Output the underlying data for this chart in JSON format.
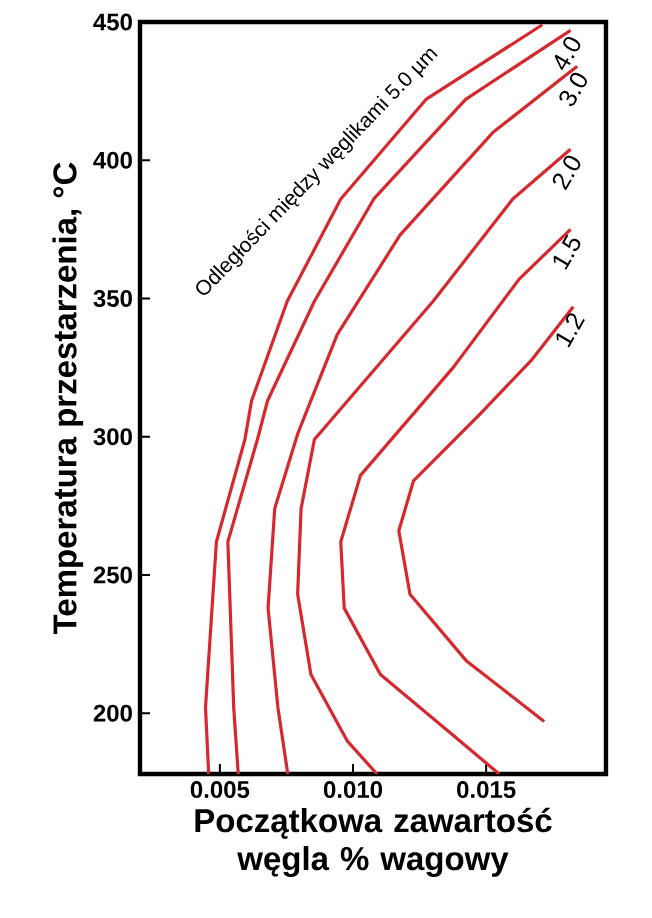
{
  "chart_data": {
    "type": "line",
    "xlabel": "Początkowa zawartość węgla % wagowy",
    "ylabel": "Temperatura przestarzenia, °C",
    "xlim": [
      0.002,
      0.0195
    ],
    "ylim": [
      178,
      450
    ],
    "xticks": [
      {
        "value": 0.005,
        "label": "0.005"
      },
      {
        "value": 0.01,
        "label": "0.010"
      },
      {
        "value": 0.015,
        "label": "0.015"
      }
    ],
    "yticks": [
      200,
      250,
      300,
      350,
      400,
      450
    ],
    "grid": false,
    "legend": false,
    "marker": "none",
    "line_style": "solid",
    "annotations": [
      "Odległości między węglikami 5.0 µm"
    ],
    "series": [
      {
        "color": "#d42a2e",
        "x": [
          0.00458,
          0.00446,
          0.00487,
          0.00594,
          0.00619,
          0.00753,
          0.00954,
          0.01274,
          0.01711
        ],
        "values": [
          178,
          202,
          262,
          299,
          313,
          349,
          386,
          422,
          449
        ]
      },
      {
        "name": "4.0",
        "color": "#d42a2e",
        "x": [
          0.00569,
          0.00552,
          0.0053,
          0.00641,
          0.00679,
          0.00855,
          0.01078,
          0.01423,
          0.01817
        ],
        "values": [
          178,
          202,
          262,
          299,
          313,
          349,
          386,
          422,
          447
        ]
      },
      {
        "name": "3.0",
        "color": "#d42a2e",
        "x": [
          0.00755,
          0.00718,
          0.00681,
          0.00706,
          0.00792,
          0.00941,
          0.01177,
          0.01525,
          0.01842
        ],
        "values": [
          178,
          202,
          238,
          274,
          301,
          337,
          373,
          410,
          434
        ]
      },
      {
        "name": "2.0",
        "color": "#d42a2e",
        "x": [
          0.0109,
          0.00978,
          0.00842,
          0.00792,
          0.00805,
          0.00855,
          0.01301,
          0.016,
          0.01817
        ],
        "values": [
          178,
          190,
          214,
          243,
          274,
          299,
          349,
          386,
          404
        ]
      },
      {
        "name": "1.5",
        "color": "#d42a2e",
        "x": [
          0.01549,
          0.01376,
          0.01103,
          0.00967,
          0.00954,
          0.01028,
          0.01376,
          0.01624,
          0.01817
        ],
        "values": [
          178,
          192,
          214,
          238,
          262,
          286,
          325,
          357,
          375
        ]
      },
      {
        "name": "1.2",
        "color": "#d42a2e",
        "x": [
          0.01718,
          0.01425,
          0.01214,
          0.01172,
          0.01227,
          0.01475,
          0.01673,
          0.01827
        ],
        "values": [
          197,
          219,
          243,
          266,
          284,
          308,
          328,
          347
        ]
      }
    ]
  }
}
